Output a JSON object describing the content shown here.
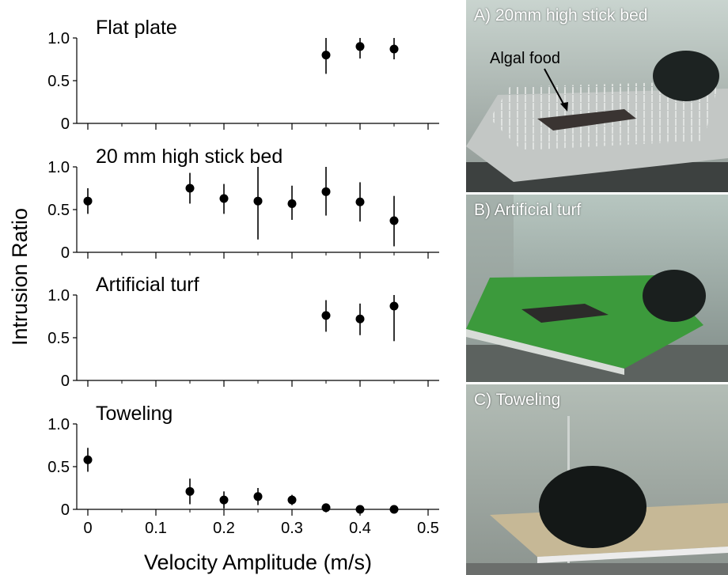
{
  "figure": {
    "ylabel": "Intrusion Ratio",
    "xlabel": "Velocity Amplitude (m/s)",
    "xlim": [
      0,
      0.5
    ],
    "ylim": [
      0,
      1.0
    ],
    "x_ticks": [
      "0",
      "0.1",
      "0.2",
      "0.3",
      "0.4",
      "0.5"
    ],
    "y_ticks": [
      "0",
      "0.5",
      "1.0"
    ]
  },
  "chart_data": [
    {
      "type": "scatter",
      "title": "Flat plate",
      "xlim": [
        0,
        0.5
      ],
      "ylim": [
        0,
        1.0
      ],
      "points": [
        {
          "x": 0.35,
          "y": 0.8,
          "lo": 0.58,
          "hi": 1.0
        },
        {
          "x": 0.4,
          "y": 0.9,
          "lo": 0.76,
          "hi": 1.0
        },
        {
          "x": 0.45,
          "y": 0.87,
          "lo": 0.75,
          "hi": 1.0
        }
      ]
    },
    {
      "type": "scatter",
      "title": "20 mm high stick bed",
      "xlim": [
        0,
        0.5
      ],
      "ylim": [
        0,
        1.0
      ],
      "points": [
        {
          "x": 0.0,
          "y": 0.6,
          "lo": 0.45,
          "hi": 0.75
        },
        {
          "x": 0.15,
          "y": 0.75,
          "lo": 0.57,
          "hi": 0.93
        },
        {
          "x": 0.2,
          "y": 0.63,
          "lo": 0.45,
          "hi": 0.8
        },
        {
          "x": 0.25,
          "y": 0.6,
          "lo": 0.15,
          "hi": 1.0
        },
        {
          "x": 0.3,
          "y": 0.57,
          "lo": 0.38,
          "hi": 0.78
        },
        {
          "x": 0.35,
          "y": 0.71,
          "lo": 0.43,
          "hi": 1.0
        },
        {
          "x": 0.4,
          "y": 0.59,
          "lo": 0.36,
          "hi": 0.82
        },
        {
          "x": 0.45,
          "y": 0.37,
          "lo": 0.07,
          "hi": 0.66
        }
      ]
    },
    {
      "type": "scatter",
      "title": "Artificial turf",
      "xlim": [
        0,
        0.5
      ],
      "ylim": [
        0,
        1.0
      ],
      "points": [
        {
          "x": 0.35,
          "y": 0.76,
          "lo": 0.57,
          "hi": 0.94
        },
        {
          "x": 0.4,
          "y": 0.72,
          "lo": 0.53,
          "hi": 0.9
        },
        {
          "x": 0.45,
          "y": 0.87,
          "lo": 0.46,
          "hi": 1.0
        }
      ]
    },
    {
      "type": "scatter",
      "title": "Toweling",
      "xlim": [
        0,
        0.5
      ],
      "ylim": [
        0,
        1.0
      ],
      "points": [
        {
          "x": 0.0,
          "y": 0.58,
          "lo": 0.44,
          "hi": 0.72
        },
        {
          "x": 0.15,
          "y": 0.21,
          "lo": 0.06,
          "hi": 0.36
        },
        {
          "x": 0.2,
          "y": 0.11,
          "lo": 0.01,
          "hi": 0.21
        },
        {
          "x": 0.25,
          "y": 0.15,
          "lo": 0.05,
          "hi": 0.25
        },
        {
          "x": 0.3,
          "y": 0.11,
          "lo": 0.05,
          "hi": 0.17
        },
        {
          "x": 0.35,
          "y": 0.02,
          "lo": -0.03,
          "hi": 0.07
        },
        {
          "x": 0.4,
          "y": 0.0,
          "lo": -0.02,
          "hi": 0.02
        },
        {
          "x": 0.45,
          "y": 0.0,
          "lo": -0.02,
          "hi": 0.02
        }
      ]
    }
  ],
  "photos": [
    {
      "label": "A) 20mm high stick bed",
      "annotation": "Algal food"
    },
    {
      "label": "B) Artificial turf"
    },
    {
      "label": "C) Toweling"
    }
  ]
}
